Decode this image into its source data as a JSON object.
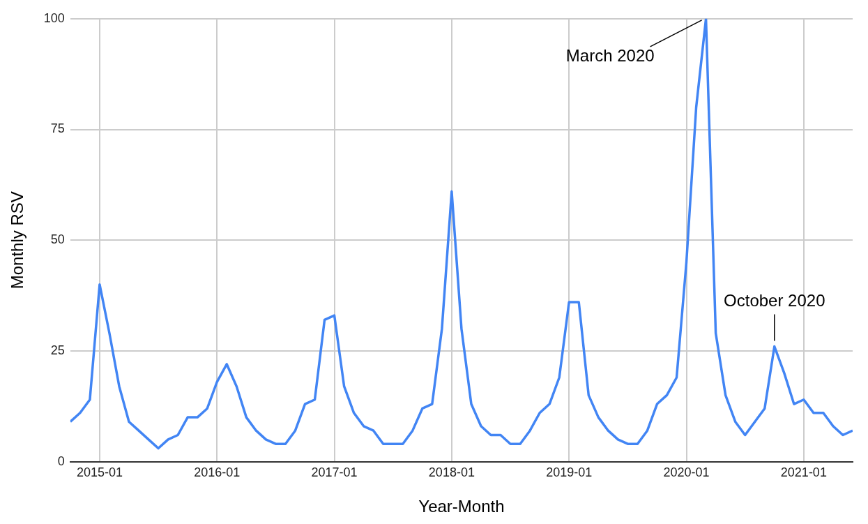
{
  "chart_data": {
    "type": "line",
    "xlabel": "Year-Month",
    "ylabel": "Monthly RSV",
    "x": [
      "2014-10",
      "2014-11",
      "2014-12",
      "2015-01",
      "2015-02",
      "2015-03",
      "2015-04",
      "2015-05",
      "2015-06",
      "2015-07",
      "2015-08",
      "2015-09",
      "2015-10",
      "2015-11",
      "2015-12",
      "2016-01",
      "2016-02",
      "2016-03",
      "2016-04",
      "2016-05",
      "2016-06",
      "2016-07",
      "2016-08",
      "2016-09",
      "2016-10",
      "2016-11",
      "2016-12",
      "2017-01",
      "2017-02",
      "2017-03",
      "2017-04",
      "2017-05",
      "2017-06",
      "2017-07",
      "2017-08",
      "2017-09",
      "2017-10",
      "2017-11",
      "2017-12",
      "2018-01",
      "2018-02",
      "2018-03",
      "2018-04",
      "2018-05",
      "2018-06",
      "2018-07",
      "2018-08",
      "2018-09",
      "2018-10",
      "2018-11",
      "2018-12",
      "2019-01",
      "2019-02",
      "2019-03",
      "2019-04",
      "2019-05",
      "2019-06",
      "2019-07",
      "2019-08",
      "2019-09",
      "2019-10",
      "2019-11",
      "2019-12",
      "2020-01",
      "2020-02",
      "2020-03",
      "2020-04",
      "2020-05",
      "2020-06",
      "2020-07",
      "2020-08",
      "2020-09",
      "2020-10",
      "2020-11",
      "2020-12",
      "2021-01",
      "2021-02",
      "2021-03",
      "2021-04",
      "2021-05",
      "2021-06"
    ],
    "series": [
      {
        "color": "#4285f4",
        "values": [
          9,
          11,
          14,
          40,
          29,
          17,
          9,
          7,
          5,
          3,
          5,
          6,
          10,
          10,
          12,
          18,
          22,
          17,
          10,
          7,
          5,
          4,
          4,
          7,
          13,
          14,
          32,
          33,
          17,
          11,
          8,
          7,
          4,
          4,
          4,
          7,
          12,
          13,
          30,
          61,
          30,
          13,
          8,
          6,
          6,
          4,
          4,
          7,
          11,
          13,
          19,
          36,
          36,
          15,
          10,
          7,
          5,
          4,
          4,
          7,
          13,
          15,
          19,
          45,
          80,
          100,
          29,
          15,
          9,
          6,
          9,
          12,
          26,
          20,
          13,
          14,
          11,
          11,
          8,
          6,
          7
        ]
      }
    ],
    "xlim": [
      "2014-10",
      "2021-06"
    ],
    "xticks": [
      "2015-01",
      "2016-01",
      "2017-01",
      "2018-01",
      "2019-01",
      "2020-01",
      "2021-01"
    ],
    "ylim": [
      0,
      100
    ],
    "yticks": [
      0,
      25,
      50,
      75,
      100
    ],
    "grid": true,
    "legend": false,
    "marker": "none",
    "line_style": "solid",
    "annotations": [
      {
        "text": "March 2020",
        "x": "2020-03",
        "y": 100
      },
      {
        "text": "October 2020",
        "x": "2020-10",
        "y": 26
      }
    ]
  }
}
